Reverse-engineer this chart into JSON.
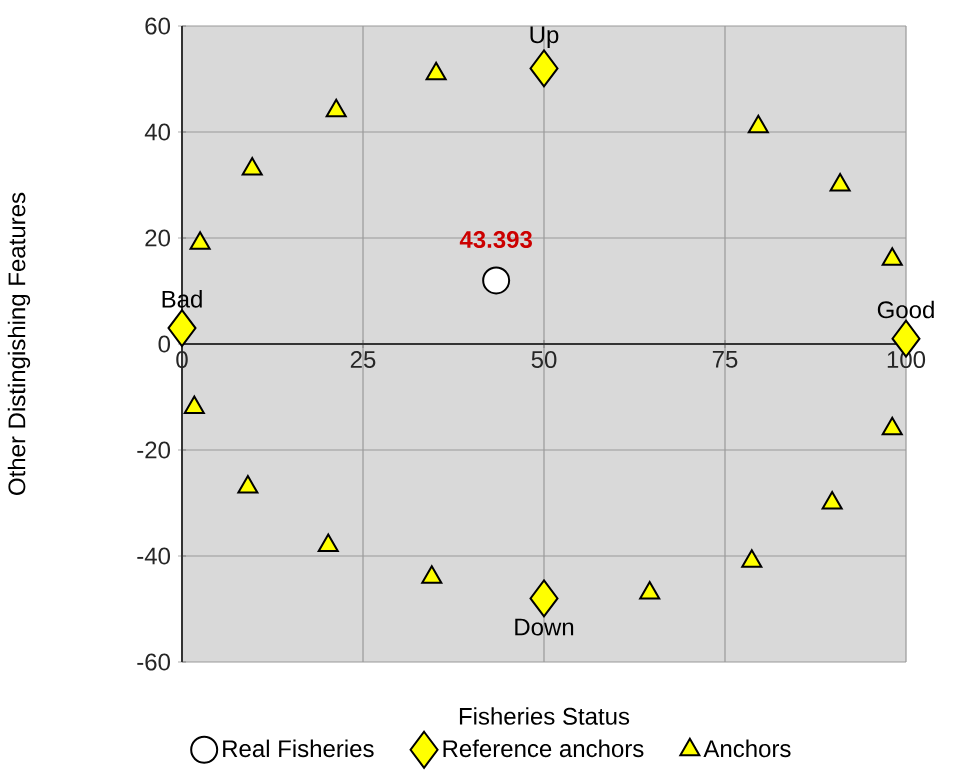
{
  "chart_data": {
    "type": "scatter",
    "xlabel": "Fisheries Status",
    "ylabel": "Other Distingishing Features",
    "xlim": [
      0,
      100
    ],
    "ylim": [
      -60,
      60
    ],
    "xticks": [
      0,
      25,
      50,
      75,
      100
    ],
    "yticks": [
      -60,
      -40,
      -20,
      0,
      20,
      40,
      60
    ],
    "grid": true,
    "legend": "bottom",
    "annotations": [
      {
        "text": "**43.393**",
        "x": 43.393,
        "y": 12
      }
    ],
    "series": [
      {
        "name": "Real Fisheries",
        "color": "#ffffff",
        "marker": "circle",
        "x": [
          43.393
        ],
        "values": [
          12
        ]
      },
      {
        "name": "Reference anchors",
        "color": "#ffff00",
        "marker": "diamond",
        "x": [
          0,
          50,
          100,
          50
        ],
        "values": [
          3,
          52,
          1,
          -48
        ],
        "value_labels": [
          "Bad",
          "Up",
          "Good",
          "Down"
        ]
      },
      {
        "name": "Anchors",
        "color": "#ffff00",
        "marker": "triangle",
        "x": [
          2.5,
          9.7,
          21.3,
          35.1,
          79.6,
          90.9,
          98.1,
          98.1,
          89.8,
          78.7,
          64.6,
          34.5,
          20.2,
          9.1,
          1.7
        ],
        "values": [
          19,
          33,
          44,
          51,
          41,
          30,
          16,
          -16,
          -30,
          -41,
          -47,
          -44,
          -38,
          -27,
          -12
        ]
      }
    ]
  }
}
